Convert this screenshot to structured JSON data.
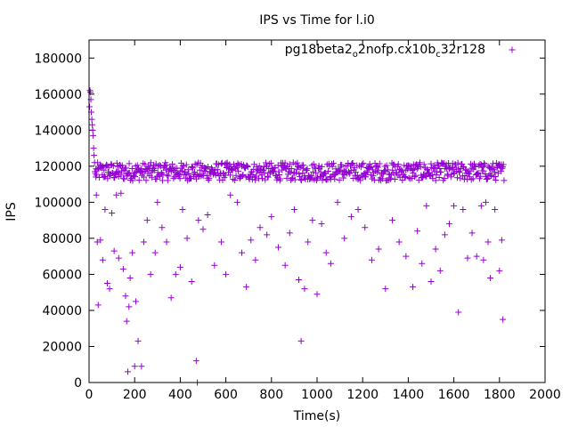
{
  "chart_data": {
    "type": "scatter",
    "title": "IPS vs Time for l.i0",
    "xlabel": "Time(s)",
    "ylabel": "IPS",
    "xlim": [
      0,
      2000
    ],
    "ylim": [
      0,
      190000
    ],
    "xticks": [
      0,
      200,
      400,
      600,
      800,
      1000,
      1200,
      1400,
      1600,
      1800,
      2000
    ],
    "xtick_labels": [
      "0",
      "200",
      "400",
      "600",
      "800",
      "1000",
      "1200",
      "1400",
      "1600",
      "1800",
      "2000"
    ],
    "yticks": [
      0,
      20000,
      40000,
      60000,
      80000,
      100000,
      120000,
      140000,
      160000,
      180000
    ],
    "ytick_labels": [
      "0",
      "20000",
      "40000",
      "60000",
      "80000",
      "100000",
      "120000",
      "140000",
      "160000",
      "180000"
    ],
    "grid": false,
    "legend_position": "top-right",
    "marker": "+",
    "series": [
      {
        "name_parts": [
          {
            "text": "pg18beta2",
            "sub": false
          },
          {
            "text": "o",
            "sub": true
          },
          {
            "text": "2nofp.cx10b",
            "sub": false
          },
          {
            "text": "c",
            "sub": true
          },
          {
            "text": "32r128",
            "sub": false
          }
        ],
        "color": "#9400d3",
        "points": [
          [
            2,
            153000
          ],
          [
            4,
            162000
          ],
          [
            6,
            161000
          ],
          [
            8,
            157000
          ],
          [
            10,
            150000
          ],
          [
            12,
            146000
          ],
          [
            14,
            143000
          ],
          [
            16,
            140000
          ],
          [
            18,
            137000
          ],
          [
            20,
            130000
          ],
          [
            22,
            126000
          ],
          [
            24,
            122000
          ],
          [
            26,
            117000
          ],
          [
            28,
            116000
          ],
          [
            30,
            114000
          ],
          [
            32,
            104000
          ],
          [
            36,
            78000
          ],
          [
            40,
            43000
          ],
          [
            50,
            79000
          ],
          [
            60,
            68000
          ],
          [
            70,
            96000
          ],
          [
            80,
            55000
          ],
          [
            90,
            52000
          ],
          [
            100,
            94000
          ],
          [
            110,
            73000
          ],
          [
            120,
            104000
          ],
          [
            130,
            69000
          ],
          [
            140,
            105000
          ],
          [
            150,
            63000
          ],
          [
            160,
            48000
          ],
          [
            165,
            34000
          ],
          [
            170,
            6000
          ],
          [
            175,
            42000
          ],
          [
            180,
            58000
          ],
          [
            190,
            72000
          ],
          [
            200,
            9000
          ],
          [
            205,
            45000
          ],
          [
            215,
            23000
          ],
          [
            230,
            9000
          ],
          [
            240,
            78000
          ],
          [
            255,
            90000
          ],
          [
            270,
            60000
          ],
          [
            290,
            72000
          ],
          [
            300,
            100000
          ],
          [
            320,
            86000
          ],
          [
            340,
            78000
          ],
          [
            360,
            47000
          ],
          [
            380,
            60000
          ],
          [
            400,
            64000
          ],
          [
            410,
            96000
          ],
          [
            430,
            80000
          ],
          [
            450,
            56000
          ],
          [
            470,
            12000
          ],
          [
            475,
            0
          ],
          [
            480,
            90000
          ],
          [
            500,
            85000
          ],
          [
            520,
            93000
          ],
          [
            550,
            65000
          ],
          [
            580,
            78000
          ],
          [
            600,
            60000
          ],
          [
            620,
            104000
          ],
          [
            650,
            100000
          ],
          [
            670,
            72000
          ],
          [
            690,
            53000
          ],
          [
            710,
            79000
          ],
          [
            730,
            68000
          ],
          [
            750,
            86000
          ],
          [
            780,
            82000
          ],
          [
            800,
            92000
          ],
          [
            830,
            75000
          ],
          [
            860,
            65000
          ],
          [
            880,
            83000
          ],
          [
            900,
            96000
          ],
          [
            920,
            57000
          ],
          [
            930,
            23000
          ],
          [
            945,
            52000
          ],
          [
            960,
            78000
          ],
          [
            980,
            90000
          ],
          [
            1000,
            49000
          ],
          [
            1020,
            88000
          ],
          [
            1040,
            72000
          ],
          [
            1060,
            66000
          ],
          [
            1090,
            100000
          ],
          [
            1120,
            80000
          ],
          [
            1150,
            92000
          ],
          [
            1180,
            96000
          ],
          [
            1210,
            86000
          ],
          [
            1240,
            68000
          ],
          [
            1270,
            74000
          ],
          [
            1300,
            52000
          ],
          [
            1330,
            90000
          ],
          [
            1360,
            78000
          ],
          [
            1390,
            70000
          ],
          [
            1420,
            53000
          ],
          [
            1440,
            84000
          ],
          [
            1460,
            66000
          ],
          [
            1480,
            98000
          ],
          [
            1500,
            56000
          ],
          [
            1520,
            74000
          ],
          [
            1540,
            62000
          ],
          [
            1560,
            82000
          ],
          [
            1580,
            88000
          ],
          [
            1600,
            98000
          ],
          [
            1620,
            39000
          ],
          [
            1640,
            96000
          ],
          [
            1660,
            69000
          ],
          [
            1680,
            83000
          ],
          [
            1700,
            70000
          ],
          [
            1720,
            98000
          ],
          [
            1730,
            68000
          ],
          [
            1740,
            100000
          ],
          [
            1750,
            78000
          ],
          [
            1760,
            58000
          ],
          [
            1780,
            96000
          ],
          [
            1800,
            62000
          ],
          [
            1810,
            79000
          ],
          [
            1815,
            35000
          ]
        ],
        "band": {
          "x_start": 30,
          "x_end": 1820,
          "y_min": 112000,
          "y_max": 122000,
          "count": 700
        }
      }
    ]
  }
}
